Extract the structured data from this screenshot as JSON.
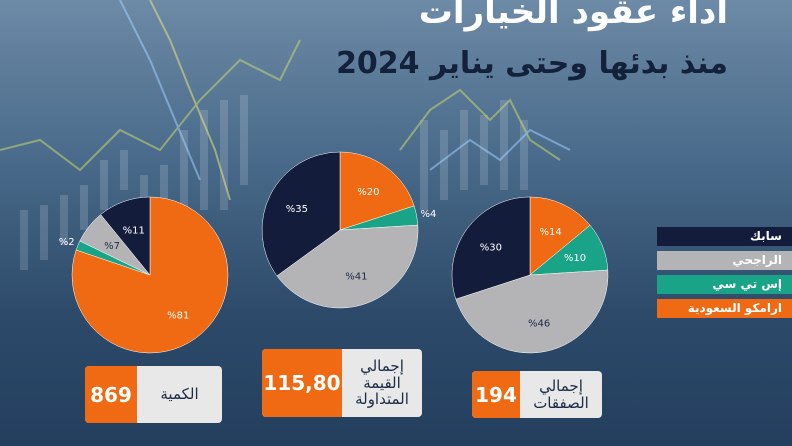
{
  "header": {
    "title": "اداء عقود الخيارات",
    "subtitle": "منذ بدئها وحتى يناير 2024"
  },
  "legend": [
    {
      "label": "سابك",
      "color": "#131d3b"
    },
    {
      "label": "الراجحي",
      "color": "#b4b4b6"
    },
    {
      "label": "إس تي سي",
      "color": "#1aa487"
    },
    {
      "label": "ارامكو السعودية",
      "color": "#ef6a12"
    }
  ],
  "chart_data": [
    {
      "type": "pie",
      "name": "الكمية",
      "slices": [
        {
          "company": "ارامكو السعودية",
          "value": 81,
          "label": "%81"
        },
        {
          "company": "إس تي سي",
          "value": 2,
          "label": "%2"
        },
        {
          "company": "الراجحي",
          "value": 7,
          "label": "%7"
        },
        {
          "company": "سابك",
          "value": 11,
          "label": "%11"
        }
      ]
    },
    {
      "type": "pie",
      "name": "إجمالي القيمة المتداولة",
      "slices": [
        {
          "company": "ارامكو السعودية",
          "value": 20,
          "label": "%20"
        },
        {
          "company": "إس تي سي",
          "value": 4,
          "label": "%4"
        },
        {
          "company": "الراجحي",
          "value": 41,
          "label": "%41"
        },
        {
          "company": "سابك",
          "value": 35,
          "label": "%35"
        }
      ]
    },
    {
      "type": "pie",
      "name": "إجمالي الصفقات",
      "slices": [
        {
          "company": "ارامكو السعودية",
          "value": 14,
          "label": "%14"
        },
        {
          "company": "إس تي سي",
          "value": 10,
          "label": "%10"
        },
        {
          "company": "الراجحي",
          "value": 46,
          "label": "%46"
        },
        {
          "company": "سابك",
          "value": 30,
          "label": "%30"
        }
      ]
    }
  ],
  "cards": [
    {
      "value": "869",
      "label": "الكمية"
    },
    {
      "value": "115,80",
      "label": "إجمالي القيمة المتداولة"
    },
    {
      "value": "194",
      "label": "إجمالي الصفقات"
    }
  ]
}
